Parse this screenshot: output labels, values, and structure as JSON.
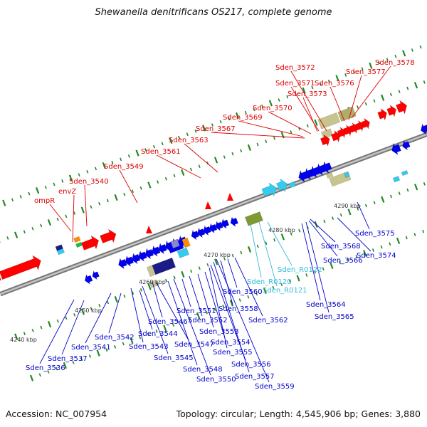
{
  "title": "Shewanella denitrificans OS217, complete genome",
  "footer": {
    "accession": "Accession: NC_007954",
    "summary": "Topology: circular; Length: 4,545,906 bp; Genes: 3,880"
  },
  "colors": {
    "upper_labels": "#dd0000",
    "lower_labels": "#0000cc",
    "rna_labels": "#33bbdd",
    "axis": "#999999",
    "tick": "#228822",
    "red_gene": "#ff0000",
    "blue_gene": "#0000ee",
    "cyan_gene": "#33ccee",
    "khaki_gene": "#c8c48e",
    "olive_gene": "#7f9933",
    "navy_gene": "#1c1c88",
    "orange_gene": "#ff8c00",
    "green_gene": "#22bb44"
  },
  "scale_labels": [
    "4240 kbp",
    "4250 kbp",
    "4260 kbp",
    "4270 kbp",
    "4280 kbp",
    "4290 kbp"
  ],
  "upper_labels": [
    "ompR",
    "envZ",
    "Sden_3540",
    "Sden_3549",
    "Sden_3561",
    "Sden_3563",
    "Sden_3567",
    "Sden_3569",
    "Sden_3570",
    "Sden_3573",
    "Sden_3571",
    "Sden_3572",
    "Sden_3576",
    "Sden_3577",
    "Sden_3578"
  ],
  "lower_labels": [
    "Sden_3536",
    "Sden_3537",
    "Sden_3541",
    "Sden_3542",
    "Sden_3543",
    "Sden_3544",
    "Sden_3545",
    "Sden_3546",
    "Sden_3547",
    "Sden_3548",
    "Sden_3550",
    "Sden_3551",
    "Sden_3552",
    "Sden_3553",
    "Sden_3554",
    "Sden_3555",
    "Sden_3556",
    "Sden_3557",
    "Sden_3559",
    "Sden_3558",
    "Sden_3560",
    "Sden_3562",
    "Sden_R0120",
    "Sden_R0121",
    "Sden_R0122",
    "Sden_3564",
    "Sden_3565",
    "Sden_3566",
    "Sden_3568",
    "Sden_3574",
    "Sden_3575"
  ]
}
